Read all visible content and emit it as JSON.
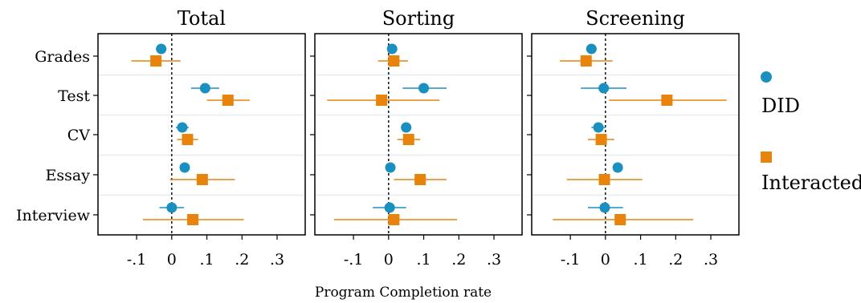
{
  "chart_data": {
    "type": "scatter",
    "xlabel": "Program Completion rate",
    "ylabel": "",
    "xlim": [
      -0.21,
      0.38
    ],
    "x_ticks": [
      {
        "v": -0.1,
        "label": "-.1"
      },
      {
        "v": 0,
        "label": "0"
      },
      {
        "v": 0.1,
        "label": ".1"
      },
      {
        "v": 0.2,
        "label": ".2"
      },
      {
        "v": 0.3,
        "label": ".3"
      }
    ],
    "categories": [
      "Grades",
      "Test",
      "CV",
      "Essay",
      "Interview"
    ],
    "reference_line_x": 0,
    "legend": {
      "placement": "right",
      "entries": [
        {
          "name": "DID",
          "marker": "circle",
          "color": "#1a90c0"
        },
        {
          "name": "Interacted",
          "marker": "square",
          "color": "#e8840c"
        }
      ]
    },
    "panels": [
      {
        "title": "Total",
        "series": [
          {
            "name": "DID",
            "points": [
              {
                "y": "Grades",
                "x": -0.03,
                "lo": -0.045,
                "hi": -0.015
              },
              {
                "y": "Test",
                "x": 0.095,
                "lo": 0.055,
                "hi": 0.135
              },
              {
                "y": "CV",
                "x": 0.03,
                "lo": 0.012,
                "hi": 0.048
              },
              {
                "y": "Essay",
                "x": 0.037,
                "lo": 0.032,
                "hi": 0.042
              },
              {
                "y": "Interview",
                "x": 0.0,
                "lo": -0.035,
                "hi": 0.035
              }
            ]
          },
          {
            "name": "Interacted",
            "points": [
              {
                "y": "Grades",
                "x": -0.045,
                "lo": -0.115,
                "hi": 0.025
              },
              {
                "y": "Test",
                "x": 0.16,
                "lo": 0.1,
                "hi": 0.222
              },
              {
                "y": "CV",
                "x": 0.045,
                "lo": 0.015,
                "hi": 0.075
              },
              {
                "y": "Essay",
                "x": 0.087,
                "lo": -0.005,
                "hi": 0.18
              },
              {
                "y": "Interview",
                "x": 0.06,
                "lo": -0.082,
                "hi": 0.205
              }
            ]
          }
        ]
      },
      {
        "title": "Sorting",
        "series": [
          {
            "name": "DID",
            "points": [
              {
                "y": "Grades",
                "x": 0.01,
                "lo": 0.0,
                "hi": 0.02
              },
              {
                "y": "Test",
                "x": 0.1,
                "lo": 0.04,
                "hi": 0.165
              },
              {
                "y": "CV",
                "x": 0.05,
                "lo": 0.035,
                "hi": 0.065
              },
              {
                "y": "Essay",
                "x": 0.005,
                "lo": 0.0,
                "hi": 0.01
              },
              {
                "y": "Interview",
                "x": 0.003,
                "lo": -0.045,
                "hi": 0.05
              }
            ]
          },
          {
            "name": "Interacted",
            "points": [
              {
                "y": "Grades",
                "x": 0.015,
                "lo": -0.03,
                "hi": 0.055
              },
              {
                "y": "Test",
                "x": -0.02,
                "lo": -0.175,
                "hi": 0.145
              },
              {
                "y": "CV",
                "x": 0.057,
                "lo": 0.025,
                "hi": 0.09
              },
              {
                "y": "Essay",
                "x": 0.09,
                "lo": 0.015,
                "hi": 0.165
              },
              {
                "y": "Interview",
                "x": 0.015,
                "lo": -0.155,
                "hi": 0.195
              }
            ]
          }
        ]
      },
      {
        "title": "Screening",
        "series": [
          {
            "name": "DID",
            "points": [
              {
                "y": "Grades",
                "x": -0.04,
                "lo": -0.055,
                "hi": -0.025
              },
              {
                "y": "Test",
                "x": -0.005,
                "lo": -0.07,
                "hi": 0.06
              },
              {
                "y": "CV",
                "x": -0.02,
                "lo": -0.04,
                "hi": 0.0
              },
              {
                "y": "Essay",
                "x": 0.035,
                "lo": 0.025,
                "hi": 0.045
              },
              {
                "y": "Interview",
                "x": -0.002,
                "lo": -0.05,
                "hi": 0.05
              }
            ]
          },
          {
            "name": "Interacted",
            "points": [
              {
                "y": "Grades",
                "x": -0.055,
                "lo": -0.13,
                "hi": 0.02
              },
              {
                "y": "Test",
                "x": 0.175,
                "lo": 0.01,
                "hi": 0.345
              },
              {
                "y": "CV",
                "x": -0.012,
                "lo": -0.05,
                "hi": 0.025
              },
              {
                "y": "Essay",
                "x": -0.003,
                "lo": -0.11,
                "hi": 0.105
              },
              {
                "y": "Interview",
                "x": 0.042,
                "lo": -0.15,
                "hi": 0.25
              }
            ]
          }
        ]
      }
    ]
  }
}
